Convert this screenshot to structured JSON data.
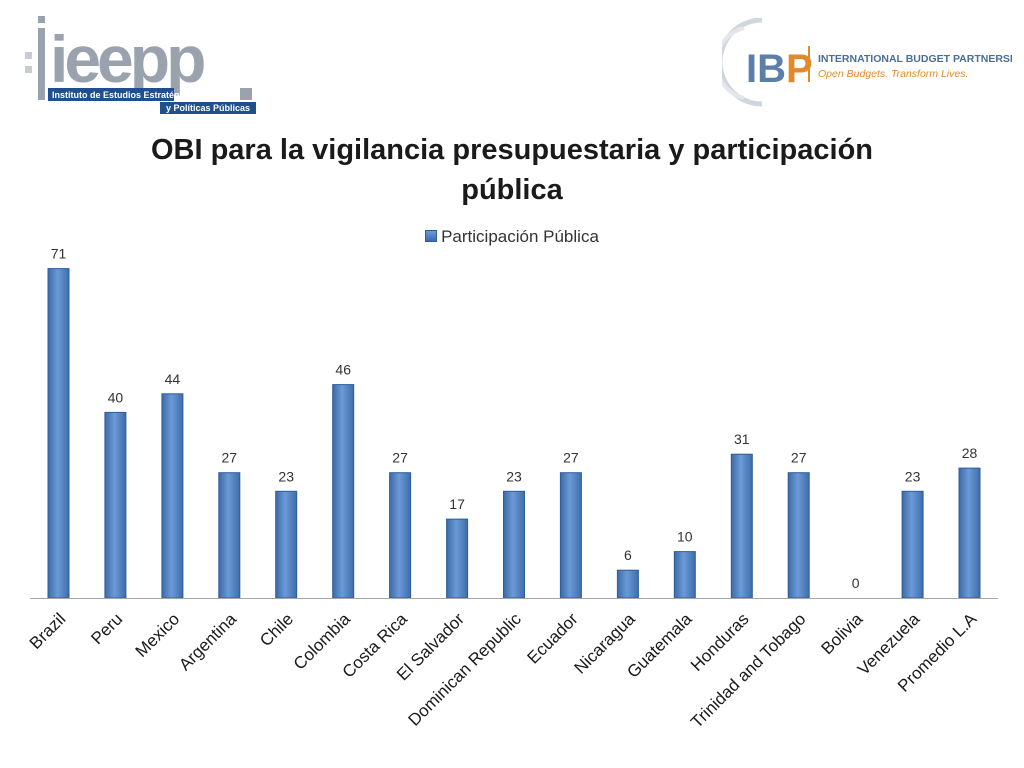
{
  "header": {
    "left_logo": {
      "wordmark": "ieepp",
      "line1": "Instituto de Estudios Estratégicos",
      "line2": "y Políticas Públicas"
    },
    "right_logo": {
      "mark": "IBP",
      "line1": "INTERNATIONAL BUDGET PARTNERSHIP",
      "line2": "Open Budgets. Transform Lives."
    }
  },
  "chart_data": {
    "type": "bar",
    "title_line1": "OBI para la vigilancia presupuestaria y participación",
    "title_line2": "pública",
    "legend": "Participación Pública",
    "legend_position": "top",
    "grid": false,
    "ylim": [
      0,
      75
    ],
    "categories": [
      "Brazil",
      "Peru",
      "Mexico",
      "Argentina",
      "Chile",
      "Colombia",
      "Costa Rica",
      "El Salvador",
      "Dominican Republic",
      "Ecuador",
      "Nicaragua",
      "Guatemala",
      "Honduras",
      "Trinidad and Tobago",
      "Bolivia",
      "Venezuela",
      "Promedio L.A"
    ],
    "series": [
      {
        "name": "Participación Pública",
        "values": [
          71,
          40,
          44,
          27,
          23,
          46,
          27,
          17,
          23,
          27,
          6,
          10,
          31,
          27,
          0,
          23,
          28
        ],
        "color": "#4f81bd"
      }
    ],
    "data_labels": [
      "71",
      "40",
      "44",
      "27",
      "23",
      "46",
      "27",
      "17",
      "23",
      "27",
      "6",
      "10",
      "31",
      "27",
      "0",
      "23",
      "28"
    ]
  }
}
